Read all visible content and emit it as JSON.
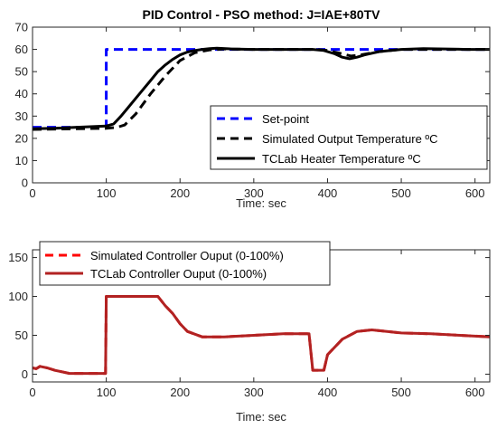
{
  "chart_data": [
    {
      "type": "line",
      "title": "PID Control - PSO method: J=IAE+80TV",
      "xlabel": "Time: sec",
      "ylabel": "",
      "xlim": [
        0,
        620
      ],
      "ylim": [
        0,
        70
      ],
      "xticks": [
        0,
        100,
        200,
        300,
        400,
        500,
        600
      ],
      "yticks": [
        0,
        10,
        20,
        30,
        40,
        50,
        60,
        70
      ],
      "legend_position": "bottom-right",
      "series": [
        {
          "name": "Set-point",
          "color": "#0000ff",
          "style": "dashed",
          "x": [
            0,
            100,
            100,
            620
          ],
          "y": [
            25,
            25,
            60,
            60
          ]
        },
        {
          "name": "Simulated Output Temperature ºC",
          "color": "#000000",
          "style": "dashed",
          "x": [
            0,
            100,
            115,
            125,
            140,
            160,
            180,
            200,
            220,
            240,
            260,
            300,
            360,
            385,
            400,
            420,
            432,
            445,
            470,
            500,
            540,
            580,
            620
          ],
          "y": [
            24,
            24.5,
            25,
            26,
            31,
            40,
            48,
            55,
            58.5,
            59.8,
            60.2,
            60,
            60,
            60,
            59.5,
            58,
            57,
            57.5,
            59,
            60,
            60,
            60,
            60
          ]
        },
        {
          "name": "TCLab Heater Temperature ºC",
          "color": "#000000",
          "style": "solid",
          "x": [
            0,
            30,
            60,
            100,
            110,
            120,
            130,
            140,
            150,
            160,
            170,
            180,
            190,
            200,
            210,
            220,
            230,
            240,
            250,
            270,
            300,
            330,
            360,
            380,
            395,
            410,
            420,
            430,
            440,
            450,
            470,
            500,
            530,
            560,
            590,
            620
          ],
          "y": [
            24.3,
            24.5,
            25,
            25.5,
            26.5,
            30,
            34,
            38,
            42,
            46,
            50,
            53,
            55.5,
            57.5,
            58.8,
            59.5,
            60,
            60.3,
            60.5,
            60.2,
            60,
            60,
            60,
            60,
            59.5,
            58,
            56.5,
            55.8,
            56.5,
            57.5,
            59,
            60,
            60.3,
            60.2,
            60,
            60
          ]
        }
      ]
    },
    {
      "type": "line",
      "title": "",
      "xlabel": "Time: sec",
      "ylabel": "",
      "xlim": [
        0,
        620
      ],
      "ylim": [
        -10,
        160
      ],
      "xticks": [
        0,
        100,
        200,
        300,
        400,
        500,
        600
      ],
      "yticks": [
        0,
        50,
        100,
        150
      ],
      "legend_position": "top-left",
      "series": [
        {
          "name": "Simulated Controller Ouput (0-100%)",
          "color": "#ff0000",
          "style": "dashed",
          "x": [
            0,
            5,
            10,
            20,
            30,
            40,
            50,
            99,
            100,
            170,
            180,
            190,
            200,
            210,
            230,
            260,
            300,
            340,
            375,
            380,
            395,
            400,
            420,
            440,
            460,
            500,
            540,
            580,
            620
          ],
          "y": [
            8,
            7,
            10,
            8,
            5,
            3,
            1,
            1,
            100,
            100,
            88,
            78,
            65,
            55,
            48,
            48,
            50,
            52,
            52,
            5,
            5,
            25,
            45,
            55,
            57,
            53,
            52,
            50,
            48
          ]
        },
        {
          "name": "TCLab Controller Ouput (0-100%)",
          "color": "#b22222",
          "style": "solid",
          "x": [
            0,
            5,
            10,
            20,
            30,
            40,
            50,
            99,
            100,
            170,
            180,
            190,
            200,
            210,
            230,
            260,
            300,
            340,
            375,
            380,
            395,
            400,
            420,
            440,
            460,
            500,
            540,
            580,
            620
          ],
          "y": [
            8,
            7,
            10,
            8,
            5,
            3,
            1,
            1,
            100,
            100,
            88,
            78,
            65,
            55,
            48,
            48,
            50,
            52,
            52,
            5,
            5,
            25,
            45,
            55,
            57,
            53,
            52,
            50,
            48
          ]
        }
      ]
    }
  ]
}
